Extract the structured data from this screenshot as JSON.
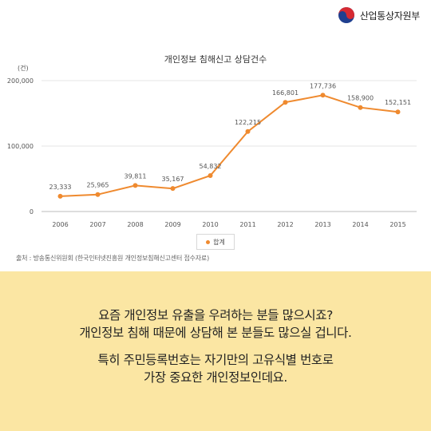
{
  "brand": {
    "ministry_name": "산업통상자원부"
  },
  "chart_data": {
    "type": "line",
    "title": "개인정보 침해신고 상담건수",
    "ylabel": "(건)",
    "xlabel": "",
    "categories": [
      "2006",
      "2007",
      "2008",
      "2009",
      "2010",
      "2011",
      "2012",
      "2013",
      "2014",
      "2015"
    ],
    "series": [
      {
        "name": "합계",
        "values": [
          23333,
          25965,
          39811,
          35167,
          54832,
          122215,
          166801,
          177736,
          158900,
          152151
        ],
        "color": "#ef8a2f"
      }
    ],
    "data_labels": [
      "23,333",
      "25,965",
      "39,811",
      "35,167",
      "54,832",
      "122,215",
      "166,801",
      "177,736",
      "158,900",
      "152,151"
    ],
    "yticks": [
      0,
      100000,
      200000
    ],
    "ytick_labels": [
      "0",
      "100,000",
      "200,000"
    ],
    "ylim": [
      0,
      200000
    ],
    "grid": true,
    "legend_position": "bottom-center"
  },
  "source_note": "출처 : 방송통신위원회 (한국인터넷진흥원 개인정보침해신고센터 접수자료)",
  "message": {
    "line1": "요즘 개인정보 유출을 우려하는 분들 많으시죠?",
    "line2": "개인정보 침해 때문에 상담해 본 분들도 많으실 겁니다.",
    "line3": "특히 주민등록번호는 자기만의 고유식별 번호로",
    "line4": "가장 중요한 개인정보인데요."
  }
}
